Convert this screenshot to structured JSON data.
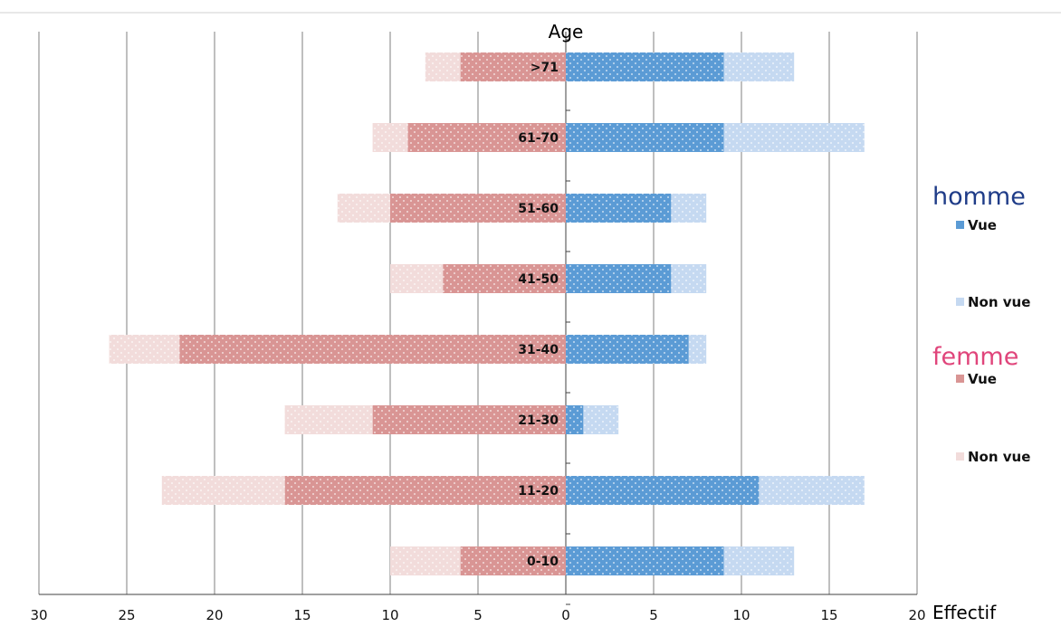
{
  "colors": {
    "homme_vue": "#5b9bd5",
    "homme_nonvue": "#c5d9f1",
    "femme_vue": "#d99594",
    "femme_nonvue": "#f2dcdb",
    "homme_title": "#1f3c88",
    "femme_title": "#e0457b",
    "gridline": "#7f7f7f"
  },
  "chart_data": {
    "type": "bar",
    "orientation": "horizontal-population-pyramid",
    "title": "Age",
    "xlabel": "Effectif",
    "categories": [
      "0-10",
      "11-20",
      "21-30",
      "31-40",
      "41-50",
      "51-60",
      "61-70",
      ">71"
    ],
    "xlim_left": [
      30,
      0
    ],
    "xlim_right": [
      0,
      20
    ],
    "x_ticks_left": [
      "30",
      "25",
      "20",
      "15",
      "10",
      "5"
    ],
    "x_ticks_right": [
      "0",
      "5",
      "10",
      "15",
      "20"
    ],
    "stacked": true,
    "grid": true,
    "legend_position": "right",
    "series": [
      {
        "group": "homme",
        "name": "Vue",
        "side": "right",
        "values": [
          9,
          11,
          1,
          7,
          6,
          6,
          9,
          9
        ]
      },
      {
        "group": "homme",
        "name": "Non vue",
        "side": "right",
        "values": [
          4,
          6,
          2,
          1,
          2,
          2,
          8,
          4
        ]
      },
      {
        "group": "femme",
        "name": "Vue",
        "side": "left",
        "values": [
          6,
          16,
          11,
          22,
          7,
          10,
          9,
          6
        ]
      },
      {
        "group": "femme",
        "name": "Non vue",
        "side": "left",
        "values": [
          4,
          7,
          5,
          4,
          3,
          3,
          2,
          2
        ]
      }
    ]
  },
  "legend": {
    "homme_title": "homme",
    "homme_vue": "Vue",
    "homme_nonvue": "Non vue",
    "femme_title": "femme",
    "femme_vue": "Vue",
    "femme_nonvue": "Non vue"
  }
}
